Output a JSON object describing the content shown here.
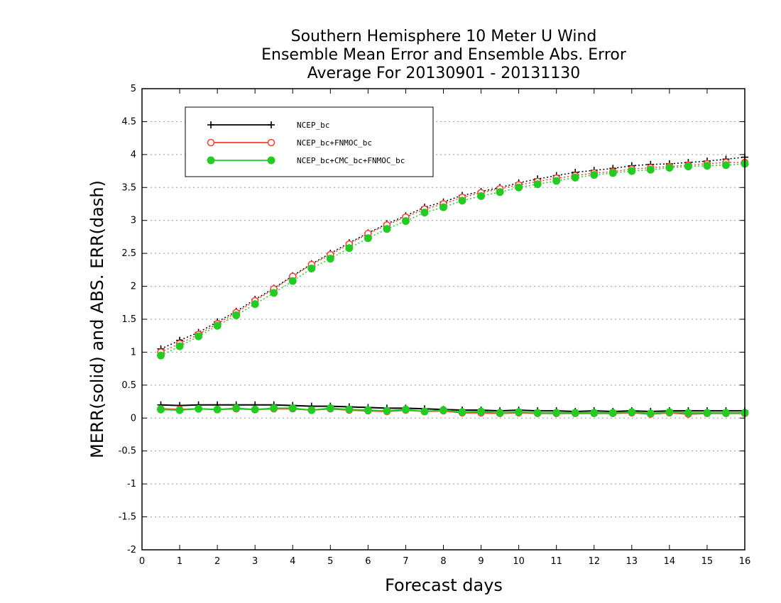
{
  "chart_data": {
    "type": "line",
    "title_lines": [
      "Southern Hemisphere 10 Meter U Wind",
      "Ensemble Mean Error and Ensemble Abs. Error",
      "Average For 20130901 - 20131130"
    ],
    "xlabel": "Forecast days",
    "ylabel": "MERR(solid) and ABS. ERR(dash)",
    "xlim": [
      0,
      16
    ],
    "ylim": [
      -2,
      5
    ],
    "xticks": [
      0,
      1,
      2,
      3,
      4,
      5,
      6,
      7,
      8,
      9,
      10,
      11,
      12,
      13,
      14,
      15,
      16
    ],
    "yticks": [
      -2,
      -1.5,
      -1,
      -0.5,
      0,
      0.5,
      1,
      1.5,
      2,
      2.5,
      3,
      3.5,
      4,
      4.5,
      5
    ],
    "grid": "horizontal dotted",
    "legend_position": "top-left",
    "x": [
      0.5,
      1,
      1.5,
      2,
      2.5,
      3,
      3.5,
      4,
      4.5,
      5,
      5.5,
      6,
      6.5,
      7,
      7.5,
      8,
      8.5,
      9,
      9.5,
      10,
      10.5,
      11,
      11.5,
      12,
      12.5,
      13,
      13.5,
      14,
      14.5,
      15,
      15.5,
      16
    ],
    "series": [
      {
        "name": "NCEP_bc",
        "color": "#000000",
        "marker": "plus",
        "abs_error": [
          1.05,
          1.18,
          1.3,
          1.46,
          1.62,
          1.8,
          1.97,
          2.16,
          2.34,
          2.5,
          2.66,
          2.81,
          2.95,
          3.07,
          3.2,
          3.28,
          3.38,
          3.44,
          3.5,
          3.57,
          3.63,
          3.68,
          3.73,
          3.76,
          3.79,
          3.83,
          3.85,
          3.86,
          3.88,
          3.9,
          3.93,
          3.96
        ],
        "mean_error": [
          0.2,
          0.19,
          0.2,
          0.2,
          0.2,
          0.2,
          0.2,
          0.19,
          0.18,
          0.18,
          0.17,
          0.16,
          0.15,
          0.15,
          0.14,
          0.13,
          0.12,
          0.12,
          0.11,
          0.12,
          0.11,
          0.11,
          0.1,
          0.11,
          0.1,
          0.11,
          0.1,
          0.11,
          0.11,
          0.11,
          0.11,
          0.11
        ]
      },
      {
        "name": "NCEP_bc+FNMOC_bc",
        "color": "#ff3b30",
        "marker": "open-circle",
        "abs_error": [
          1.0,
          1.13,
          1.27,
          1.43,
          1.6,
          1.78,
          1.96,
          2.15,
          2.33,
          2.48,
          2.64,
          2.8,
          2.93,
          3.05,
          3.17,
          3.25,
          3.35,
          3.42,
          3.48,
          3.54,
          3.59,
          3.64,
          3.68,
          3.72,
          3.74,
          3.78,
          3.8,
          3.82,
          3.84,
          3.86,
          3.88,
          3.88
        ],
        "mean_error": [
          0.14,
          0.13,
          0.14,
          0.13,
          0.14,
          0.13,
          0.14,
          0.14,
          0.12,
          0.14,
          0.12,
          0.11,
          0.1,
          0.12,
          0.1,
          0.11,
          0.08,
          0.08,
          0.07,
          0.08,
          0.07,
          0.07,
          0.07,
          0.07,
          0.07,
          0.08,
          0.06,
          0.08,
          0.06,
          0.07,
          0.07,
          0.07
        ]
      },
      {
        "name": "NCEP_bc+CMC_bc+FNMOC_bc",
        "color": "#22cc22",
        "marker": "filled-circle",
        "abs_error": [
          0.95,
          1.09,
          1.24,
          1.4,
          1.56,
          1.73,
          1.9,
          2.08,
          2.27,
          2.42,
          2.58,
          2.73,
          2.87,
          2.99,
          3.12,
          3.2,
          3.3,
          3.37,
          3.43,
          3.5,
          3.55,
          3.6,
          3.65,
          3.69,
          3.72,
          3.75,
          3.77,
          3.8,
          3.82,
          3.83,
          3.84,
          3.86
        ],
        "mean_error": [
          0.13,
          0.12,
          0.14,
          0.13,
          0.15,
          0.13,
          0.15,
          0.15,
          0.12,
          0.15,
          0.13,
          0.12,
          0.11,
          0.13,
          0.1,
          0.12,
          0.09,
          0.1,
          0.08,
          0.09,
          0.08,
          0.08,
          0.08,
          0.08,
          0.08,
          0.09,
          0.07,
          0.09,
          0.08,
          0.08,
          0.08,
          0.08
        ]
      }
    ]
  }
}
